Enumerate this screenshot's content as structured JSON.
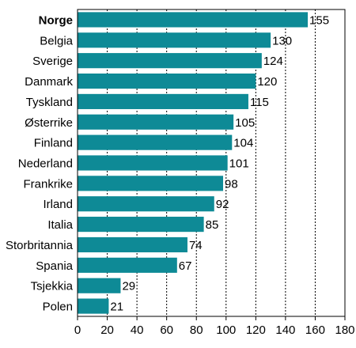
{
  "chart_data": {
    "type": "bar",
    "orientation": "horizontal",
    "categories": [
      "Norge",
      "Belgia",
      "Sverige",
      "Danmark",
      "Tyskland",
      "Østerrike",
      "Finland",
      "Nederland",
      "Frankrike",
      "Irland",
      "Italia",
      "Storbritannia",
      "Spania",
      "Tsjekkia",
      "Polen"
    ],
    "values": [
      155,
      130,
      124,
      120,
      115,
      105,
      104,
      101,
      98,
      92,
      85,
      74,
      67,
      29,
      21
    ],
    "highlight_category": "Norge",
    "title": "",
    "xlabel": "",
    "ylabel": "",
    "xlim": [
      0,
      180
    ],
    "xticks": [
      0,
      20,
      40,
      60,
      80,
      100,
      120,
      140,
      160,
      180
    ],
    "grid": "vertical dotted",
    "legend": "none",
    "bar_color": "#0e8a96"
  }
}
